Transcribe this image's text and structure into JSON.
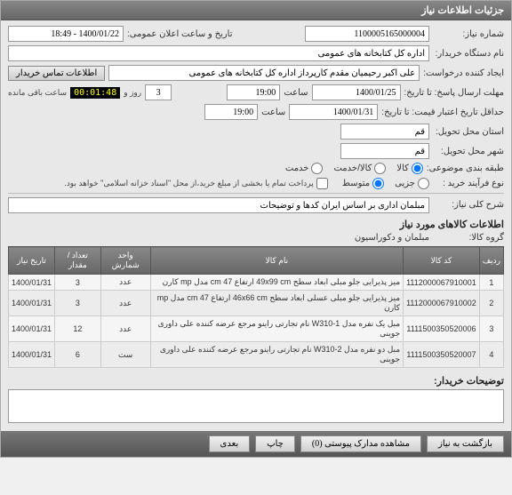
{
  "panel_title": "جزئیات اطلاعات نیاز",
  "fields": {
    "need_no_label": "شماره نیاز:",
    "need_no": "1100005165000004",
    "announce_label": "تاریخ و ساعت اعلان عمومی:",
    "announce": "1400/01/22 - 18:49",
    "buyer_org_label": "نام دستگاه خریدار:",
    "buyer_org": "اداره کل کتابخانه های عمومی",
    "creator_label": "ایجاد کننده درخواست:",
    "creator": "علی اکبر رحیمیان مقدم کارپرداز اداره کل کتابخانه های عمومی",
    "contact_btn": "اطلاعات تماس خریدار",
    "deadline_from_label": "مهلت ارسال پاسخ: تا تاریخ:",
    "deadline_date": "1400/01/25",
    "time_label": "ساعت",
    "deadline_time": "19:00",
    "days": "3",
    "days_label": "روز و",
    "counter": "00:01:48",
    "counter_suffix": "ساعت باقی مانده",
    "validity_label": "حداقل تاریخ اعتبار قیمت: تا تاریخ:",
    "validity_date": "1400/01/31",
    "validity_time": "19:00",
    "province_label": "استان محل تحویل:",
    "province": "قم",
    "city_label": "شهر محل تحویل:",
    "city": "قم",
    "budget_label": "طبقه بندی موضوعی:",
    "budget_opts": {
      "kala": "کالا",
      "khadamat": "کالا/خدمت",
      "khadamat2": "خدمت"
    },
    "process_label": "نوع فرآیند خرید :",
    "process_opts": {
      "low": "جزیی",
      "med": "متوسط"
    },
    "payment_note": "پرداخت تمام یا بخشی از مبلغ خرید،از محل \"اسناد خزانه اسلامی\" خواهد بود.",
    "summary_label": "شرح کلی نیاز:",
    "summary": "مبلمان اداری بر اساس ایران کدها و توضیحات",
    "items_title": "اطلاعات کالاهای مورد نیاز",
    "group_label": "گروه کالا:",
    "group": "مبلمان و دکوراسیون"
  },
  "table": {
    "headers": [
      "ردیف",
      "کد کالا",
      "نام کالا",
      "واحد شمارش",
      "تعداد / مقدار",
      "تاریخ نیاز"
    ],
    "rows": [
      [
        "1",
        "1112000067910001",
        "میز پذیرایی جلو مبلی ابعاد سطح 49x99 cm ارتفاع cm 47 مدل mp کارن",
        "عدد",
        "3",
        "1400/01/31"
      ],
      [
        "2",
        "1112000067910002",
        "میز پذیرایی جلو مبلی عسلی ابعاد سطح 46x66 cm ارتفاع cm 47 مدل mp کارن",
        "عدد",
        "3",
        "1400/01/31"
      ],
      [
        "3",
        "1111500350520006",
        "مبل یک نفره مدل W310-1 نام تجارتی راینو مرجع عرضه کننده علی داوری جوینی",
        "عدد",
        "12",
        "1400/01/31"
      ],
      [
        "4",
        "1111500350520007",
        "مبل دو نفره مدل W310-2 نام تجارتی راینو مرجع عرضه کننده علی داوری جوینی",
        "ست",
        "6",
        "1400/01/31"
      ]
    ]
  },
  "buyer_notes_label": "توضیحات خریدار:",
  "bottom": {
    "back": "بازگشت به نیاز",
    "attachments": "مشاهده مدارک پیوستی (0)",
    "print": "چاپ",
    "later": "بعدی"
  }
}
